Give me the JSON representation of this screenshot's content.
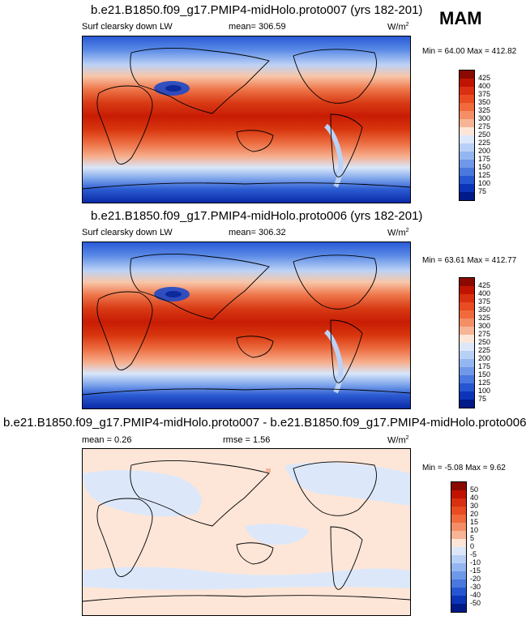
{
  "season": "MAM",
  "panels": [
    {
      "title": "b.e21.B1850.f09_g17.PMIP4-midHolo.proto007 (yrs 182-201)",
      "left_label": "Surf clearsky down LW",
      "mid_label": "mean= 306.59",
      "units": "W/m",
      "units_sup": "2",
      "minmax": "Min = 64.00 Max = 412.82",
      "colorbar": {
        "labels": [
          "425",
          "400",
          "375",
          "350",
          "325",
          "300",
          "275",
          "250",
          "225",
          "200",
          "175",
          "150",
          "125",
          "100",
          "75"
        ],
        "colors": [
          "#8a0a00",
          "#c01400",
          "#d83010",
          "#e84c20",
          "#f06a3c",
          "#f48e66",
          "#f8b496",
          "#fde6d8",
          "#dce8fa",
          "#b9d0f6",
          "#94b6f0",
          "#6f98e8",
          "#4a78de",
          "#2656d0",
          "#0c34b8",
          "#001a88"
        ]
      }
    },
    {
      "title": "b.e21.B1850.f09_g17.PMIP4-midHolo.proto006 (yrs 182-201)",
      "left_label": "Surf clearsky down LW",
      "mid_label": "mean= 306.32",
      "units": "W/m",
      "units_sup": "2",
      "minmax": "Min = 63.61 Max = 412.77",
      "colorbar": {
        "labels": [
          "425",
          "400",
          "375",
          "350",
          "325",
          "300",
          "275",
          "250",
          "225",
          "200",
          "175",
          "150",
          "125",
          "100",
          "75"
        ],
        "colors": [
          "#8a0a00",
          "#c01400",
          "#d83010",
          "#e84c20",
          "#f06a3c",
          "#f48e66",
          "#f8b496",
          "#fde6d8",
          "#dce8fa",
          "#b9d0f6",
          "#94b6f0",
          "#6f98e8",
          "#4a78de",
          "#2656d0",
          "#0c34b8",
          "#001a88"
        ]
      }
    },
    {
      "title": "b.e21.B1850.f09_g17.PMIP4-midHolo.proto007 - b.e21.B1850.f09_g17.PMIP4-midHolo.proto006",
      "left_label": "mean =   0.26",
      "mid_label": "rmse =   1.56",
      "units": "W/m",
      "units_sup": "2",
      "minmax": "Min = -5.08 Max = 9.62",
      "colorbar": {
        "labels": [
          "50",
          "40",
          "30",
          "20",
          "15",
          "10",
          "5",
          "0",
          "-5",
          "-10",
          "-15",
          "-20",
          "-30",
          "-40",
          "-50"
        ],
        "colors": [
          "#8a0a00",
          "#c01400",
          "#d83010",
          "#e84c20",
          "#f06a3c",
          "#f48e66",
          "#f8b496",
          "#fde6d8",
          "#dce8fa",
          "#b9d0f6",
          "#94b6f0",
          "#6f98e8",
          "#4a78de",
          "#2656d0",
          "#0c34b8",
          "#001a88"
        ]
      }
    }
  ]
}
